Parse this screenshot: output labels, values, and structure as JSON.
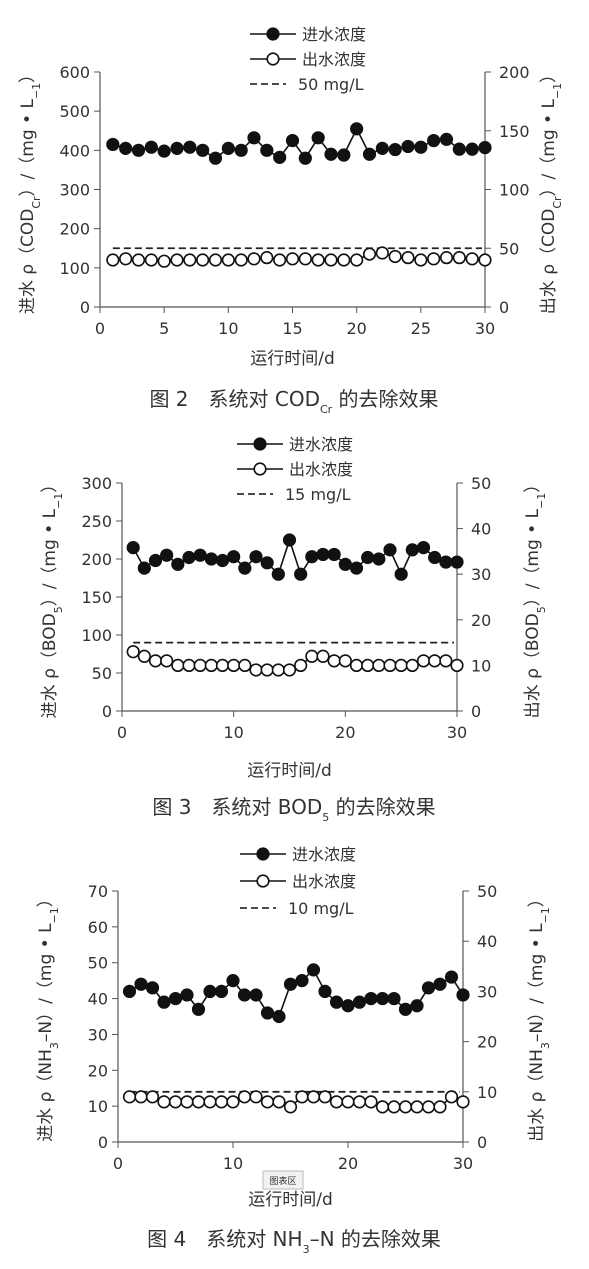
{
  "chart_data": [
    {
      "type": "line",
      "caption_parts": [
        "图 2　系统对 COD",
        "Cr",
        " 的去除效果"
      ],
      "xlabel": "运行时间/d",
      "ylabel_left_parts": [
        "进水  ρ（COD",
        "Cr",
        "）/（mg • L",
        "−1",
        "）"
      ],
      "ylabel_right_parts": [
        "出水  ρ（COD",
        "Cr",
        "）/（mg • L",
        "−1",
        "）"
      ],
      "xlim": [
        0,
        30
      ],
      "x_ticks": [
        0,
        5,
        10,
        15,
        20,
        25,
        30
      ],
      "y_left_lim": [
        0,
        600
      ],
      "y_left_ticks": [
        0,
        100,
        200,
        300,
        400,
        500,
        600
      ],
      "y_right_lim": [
        0,
        200
      ],
      "y_right_ticks": [
        0,
        50,
        100,
        150,
        200
      ],
      "x": [
        1,
        2,
        3,
        4,
        5,
        6,
        7,
        8,
        9,
        10,
        11,
        12,
        13,
        14,
        15,
        16,
        17,
        18,
        19,
        20,
        21,
        22,
        23,
        24,
        25,
        26,
        27,
        28,
        29,
        30
      ],
      "series": [
        {
          "name": "进水浓度",
          "axis": "left",
          "marker": "filled",
          "values": [
            415,
            405,
            400,
            408,
            398,
            405,
            408,
            400,
            380,
            405,
            400,
            432,
            400,
            382,
            425,
            380,
            432,
            390,
            388,
            455,
            390,
            405,
            402,
            410,
            408,
            425,
            428,
            403,
            403,
            407
          ]
        },
        {
          "name": "出水浓度",
          "axis": "right",
          "marker": "open",
          "values": [
            40,
            41,
            40,
            40,
            39,
            40,
            40,
            40,
            40,
            40,
            40,
            41,
            42,
            40,
            41,
            41,
            40,
            40,
            40,
            40,
            45,
            46,
            43,
            42,
            40,
            41,
            42,
            42,
            41,
            40
          ]
        }
      ],
      "reference_line": {
        "name": "50 mg/L",
        "axis": "right",
        "value": 50
      },
      "legend": "top-center",
      "grid": false
    },
    {
      "type": "line",
      "caption_parts": [
        "图 3　系统对 BOD",
        "5",
        " 的去除效果"
      ],
      "xlabel": "运行时间/d",
      "ylabel_left_parts": [
        "进水  ρ（BOD",
        "5",
        "）/（mg • L",
        "−1",
        "）"
      ],
      "ylabel_right_parts": [
        "出水  ρ（BOD",
        "5",
        "）/（mg • L",
        "−1",
        "）"
      ],
      "xlim": [
        0,
        30
      ],
      "x_ticks": [
        0,
        10,
        20,
        30
      ],
      "y_left_lim": [
        0,
        300
      ],
      "y_left_ticks": [
        0,
        50,
        100,
        150,
        200,
        250,
        300
      ],
      "y_right_lim": [
        0,
        50
      ],
      "y_right_ticks": [
        0,
        10,
        20,
        30,
        40,
        50
      ],
      "x": [
        1,
        2,
        3,
        4,
        5,
        6,
        7,
        8,
        9,
        10,
        11,
        12,
        13,
        14,
        15,
        16,
        17,
        18,
        19,
        20,
        21,
        22,
        23,
        24,
        25,
        26,
        27,
        28,
        29,
        30
      ],
      "series": [
        {
          "name": "进水浓度",
          "axis": "left",
          "marker": "filled",
          "values": [
            215,
            188,
            198,
            205,
            193,
            202,
            205,
            200,
            198,
            203,
            188,
            203,
            195,
            180,
            225,
            180,
            203,
            206,
            206,
            193,
            188,
            202,
            200,
            212,
            180,
            212,
            215,
            202,
            196,
            196
          ]
        },
        {
          "name": "出水浓度",
          "axis": "right",
          "marker": "open",
          "values": [
            13,
            12,
            11,
            11,
            10,
            10,
            10,
            10,
            10,
            10,
            10,
            9,
            9,
            9,
            9,
            10,
            12,
            12,
            11,
            11,
            10,
            10,
            10,
            10,
            10,
            10,
            11,
            11,
            11,
            10
          ]
        }
      ],
      "reference_line": {
        "name": "15 mg/L",
        "axis": "right",
        "value": 15
      },
      "legend": "top-center",
      "grid": false
    },
    {
      "type": "line",
      "caption_parts": [
        "图 4　系统对 NH",
        "3",
        "–N 的去除效果"
      ],
      "xlabel": "运行时间/d",
      "ylabel_left_parts": [
        "进水  ρ（NH",
        "3",
        "–N）/（mg • L",
        "−1",
        "）"
      ],
      "ylabel_right_parts": [
        "出水  ρ（NH",
        "3",
        "–N）/（mg • L",
        "−1",
        "）"
      ],
      "xlim": [
        0,
        30
      ],
      "x_ticks": [
        0,
        10,
        20,
        30
      ],
      "y_left_lim": [
        0,
        70
      ],
      "y_left_ticks": [
        0,
        10,
        20,
        30,
        40,
        50,
        60,
        70
      ],
      "y_right_lim": [
        0,
        50
      ],
      "y_right_ticks": [
        0,
        10,
        20,
        30,
        40,
        50
      ],
      "x": [
        1,
        2,
        3,
        4,
        5,
        6,
        7,
        8,
        9,
        10,
        11,
        12,
        13,
        14,
        15,
        16,
        17,
        18,
        19,
        20,
        21,
        22,
        23,
        24,
        25,
        26,
        27,
        28,
        29,
        30
      ],
      "series": [
        {
          "name": "进水浓度",
          "axis": "left",
          "marker": "filled",
          "values": [
            42,
            44,
            43,
            39,
            40,
            41,
            37,
            42,
            42,
            45,
            41,
            41,
            36,
            35,
            44,
            45,
            48,
            42,
            39,
            38,
            39,
            40,
            40,
            40,
            37,
            38,
            43,
            44,
            46,
            41
          ]
        },
        {
          "name": "出水浓度",
          "axis": "right",
          "marker": "open",
          "values": [
            9,
            9,
            9,
            8,
            8,
            8,
            8,
            8,
            8,
            8,
            9,
            9,
            8,
            8,
            7,
            9,
            9,
            9,
            8,
            8,
            8,
            8,
            7,
            7,
            7,
            7,
            7,
            7,
            9,
            8
          ]
        }
      ],
      "reference_line": {
        "name": "10 mg/L",
        "axis": "right",
        "value": 10
      },
      "legend": "top-center",
      "grid": false,
      "watermark_text": "图表区"
    }
  ]
}
